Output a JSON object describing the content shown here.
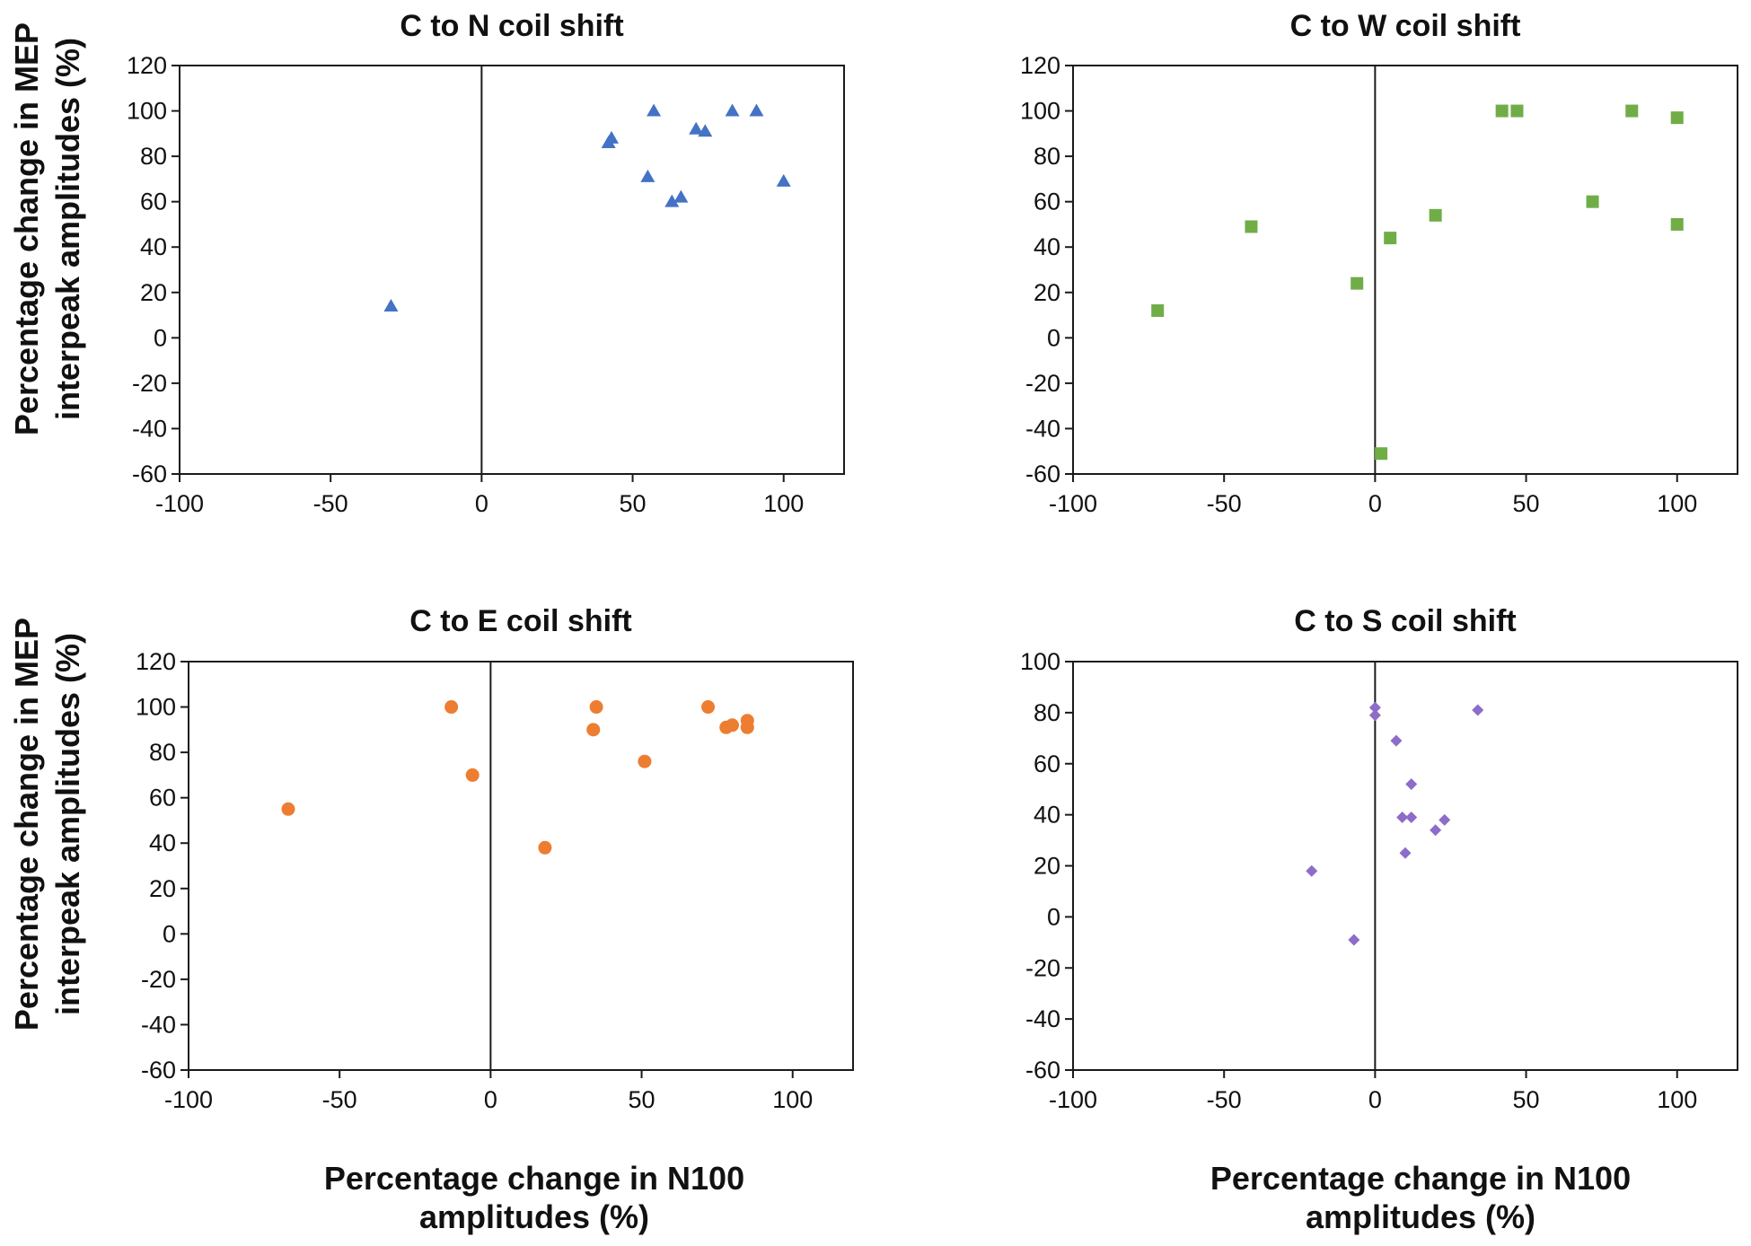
{
  "shared_labels": {
    "ylabel_line1": "Percentage change in MEP",
    "ylabel_line2": "interpeak amplitudes (%)",
    "xlabel_line1": "Percentage change in N100",
    "xlabel_line2": "amplitudes (%)"
  },
  "chart_data": [
    {
      "type": "scatter",
      "title": "C to N coil shift",
      "xlabel": "Percentage change in N100 amplitudes (%)",
      "ylabel": "Percentage change in MEP interpeak amplitudes (%)",
      "xlim": [
        -100,
        120
      ],
      "ylim": [
        -60,
        120
      ],
      "xticks": [
        -100,
        -50,
        0,
        50,
        100
      ],
      "yticks": [
        -60,
        -40,
        -20,
        0,
        20,
        40,
        60,
        80,
        100,
        120
      ],
      "marker": "triangle",
      "color": "#4472C4",
      "points": [
        [
          -30,
          14
        ],
        [
          42,
          86
        ],
        [
          43,
          88
        ],
        [
          55,
          71
        ],
        [
          57,
          100
        ],
        [
          63,
          60
        ],
        [
          66,
          62
        ],
        [
          71,
          92
        ],
        [
          74,
          91
        ],
        [
          83,
          100
        ],
        [
          91,
          100
        ],
        [
          100,
          69
        ]
      ]
    },
    {
      "type": "scatter",
      "title": "C to W coil shift",
      "xlabel": "",
      "ylabel": "",
      "xlim": [
        -100,
        120
      ],
      "ylim": [
        -60,
        120
      ],
      "xticks": [
        -100,
        -50,
        0,
        50,
        100
      ],
      "yticks": [
        -60,
        -40,
        -20,
        0,
        20,
        40,
        60,
        80,
        100,
        120
      ],
      "marker": "square",
      "color": "#70AD47",
      "points": [
        [
          -72,
          12
        ],
        [
          -41,
          49
        ],
        [
          -6,
          24
        ],
        [
          2,
          -51
        ],
        [
          5,
          44
        ],
        [
          20,
          54
        ],
        [
          42,
          100
        ],
        [
          47,
          100
        ],
        [
          72,
          60
        ],
        [
          85,
          100
        ],
        [
          100,
          97
        ],
        [
          100,
          50
        ]
      ]
    },
    {
      "type": "scatter",
      "title": "C to E coil shift",
      "xlabel": "",
      "ylabel": "",
      "xlim": [
        -100,
        120
      ],
      "ylim": [
        -60,
        120
      ],
      "xticks": [
        -100,
        -50,
        0,
        50,
        100
      ],
      "yticks": [
        -60,
        -40,
        -20,
        0,
        20,
        40,
        60,
        80,
        100,
        120
      ],
      "marker": "circle",
      "color": "#ED7D31",
      "points": [
        [
          -67,
          55
        ],
        [
          -13,
          100
        ],
        [
          -6,
          70
        ],
        [
          18,
          38
        ],
        [
          34,
          90
        ],
        [
          35,
          100
        ],
        [
          51,
          76
        ],
        [
          72,
          100
        ],
        [
          78,
          91
        ],
        [
          80,
          92
        ],
        [
          85,
          94
        ],
        [
          85,
          91
        ]
      ]
    },
    {
      "type": "scatter",
      "title": "C to S coil shift",
      "xlabel": "",
      "ylabel": "",
      "xlim": [
        -100,
        120
      ],
      "ylim": [
        -60,
        100
      ],
      "xticks": [
        -100,
        -50,
        0,
        50,
        100
      ],
      "yticks": [
        -60,
        -40,
        -20,
        0,
        20,
        40,
        60,
        80,
        100
      ],
      "marker": "diamond",
      "color": "#8E6CC9",
      "points": [
        [
          -21,
          18
        ],
        [
          -7,
          -9
        ],
        [
          0,
          82
        ],
        [
          0,
          79
        ],
        [
          7,
          69
        ],
        [
          9,
          39
        ],
        [
          10,
          25
        ],
        [
          12,
          52
        ],
        [
          12,
          39
        ],
        [
          20,
          34
        ],
        [
          23,
          38
        ],
        [
          34,
          81
        ]
      ]
    }
  ]
}
